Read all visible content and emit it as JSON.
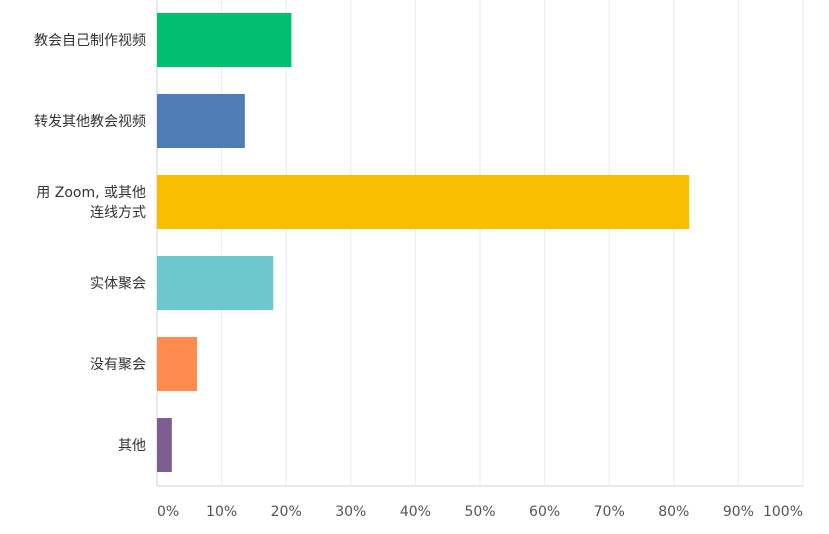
{
  "chart_data": {
    "type": "bar",
    "orientation": "horizontal",
    "categories": [
      [
        "教会自己制作视频"
      ],
      [
        "转发其他教会视频"
      ],
      [
        "用 Zoom, 或其他",
        "连线方式"
      ],
      [
        "实体聚会"
      ],
      [
        "没有聚会"
      ],
      [
        "其他"
      ]
    ],
    "values": [
      20.8,
      13.6,
      82.4,
      18.0,
      6.2,
      2.3
    ],
    "colors": [
      "#00bf6f",
      "#507cb6",
      "#f9be00",
      "#6bc8cd",
      "#ff8b4f",
      "#7d5e90"
    ],
    "xticks": [
      "0%",
      "10%",
      "20%",
      "30%",
      "40%",
      "50%",
      "60%",
      "70%",
      "80%",
      "90%",
      "100%"
    ],
    "xlim": [
      0,
      100
    ],
    "grid": true,
    "title": "",
    "xlabel": "",
    "ylabel": ""
  }
}
